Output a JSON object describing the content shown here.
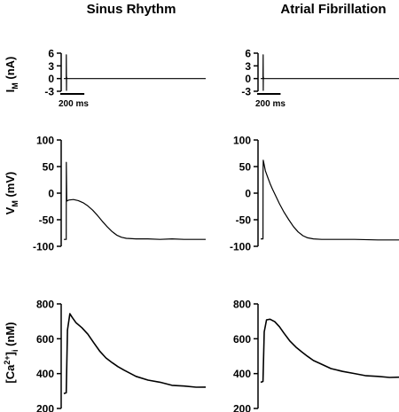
{
  "columns": [
    "Sinus Rhythm",
    "Atrial Fibrillation"
  ],
  "ylabels": {
    "current": {
      "main": "I",
      "sub": "M",
      "unit": " (nA)"
    },
    "voltage": {
      "main": "V",
      "sub": "M",
      "unit": " (mV)"
    },
    "calcium": {
      "pre": "[Ca",
      "sup": "2+",
      "post": "]",
      "sub": "i",
      "unit": " (nM)"
    }
  },
  "scale_bar": {
    "label": "200 ms",
    "duration_ms": 200
  },
  "chart_data": [
    {
      "type": "line",
      "title": "Sinus Rhythm",
      "ylabel": "IM (nA)",
      "yticks": [
        6,
        3,
        0,
        -3
      ],
      "ylim": [
        -3,
        6
      ],
      "xlim": [
        0,
        1180
      ],
      "series": [
        {
          "x": [
            0,
            20,
            21,
            22,
            23,
            24,
            1180
          ],
          "y": [
            0,
            0,
            5.6,
            -2.8,
            0.4,
            0,
            0
          ]
        }
      ]
    },
    {
      "type": "line",
      "title": "Atrial Fibrillation",
      "ylabel": "IM (nA)",
      "yticks": [
        6,
        3,
        0,
        -3
      ],
      "ylim": [
        -3,
        6
      ],
      "xlim": [
        0,
        1180
      ],
      "series": [
        {
          "x": [
            0,
            20,
            21,
            22,
            23,
            24,
            1180
          ],
          "y": [
            0,
            0,
            5.6,
            -2.8,
            0.4,
            0,
            0
          ]
        }
      ]
    },
    {
      "type": "line",
      "title": "Sinus Rhythm",
      "ylabel": "VM (mV)",
      "yticks": [
        100,
        50,
        0,
        -50,
        -100
      ],
      "ylim": [
        -100,
        100
      ],
      "xlim": [
        0,
        1180
      ],
      "series": [
        {
          "x": [
            0,
            20,
            20.5,
            21,
            24,
            40,
            80,
            120,
            160,
            200,
            240,
            280,
            320,
            360,
            400,
            440,
            480,
            520,
            600,
            700,
            800,
            900,
            1000,
            1100,
            1180
          ],
          "y": [
            -87,
            -87,
            30,
            58,
            -15,
            -13,
            -12,
            -14,
            -18,
            -24,
            -32,
            -42,
            -53,
            -63,
            -72,
            -79,
            -83,
            -85,
            -86,
            -86,
            -87,
            -86,
            -87,
            -87,
            -87
          ]
        }
      ]
    },
    {
      "type": "line",
      "title": "Atrial Fibrillation",
      "ylabel": "VM (mV)",
      "yticks": [
        100,
        50,
        0,
        -50,
        -100
      ],
      "ylim": [
        -100,
        100
      ],
      "xlim": [
        0,
        1180
      ],
      "series": [
        {
          "x": [
            0,
            20,
            20.5,
            22,
            40,
            60,
            80,
            100,
            130,
            160,
            200,
            240,
            280,
            320,
            360,
            400,
            450,
            520,
            600,
            800,
            1000,
            1180
          ],
          "y": [
            -86,
            -86,
            40,
            62,
            42,
            30,
            18,
            8,
            -6,
            -20,
            -36,
            -50,
            -63,
            -73,
            -80,
            -84,
            -86,
            -87,
            -87,
            -87,
            -88,
            -88
          ]
        }
      ]
    },
    {
      "type": "line",
      "title": "Sinus Rhythm",
      "ylabel": "[Ca2+]i (nM)",
      "yticks": [
        800,
        600,
        400,
        200
      ],
      "ylim": [
        200,
        800
      ],
      "xlim": [
        0,
        1180
      ],
      "series": [
        {
          "x": [
            0,
            20,
            30,
            50,
            70,
            100,
            150,
            200,
            250,
            300,
            350,
            400,
            450,
            500,
            600,
            700,
            800,
            900,
            1000,
            1100,
            1180
          ],
          "y": [
            285,
            290,
            650,
            740,
            720,
            690,
            660,
            625,
            580,
            530,
            490,
            465,
            445,
            420,
            385,
            360,
            345,
            330,
            325,
            320,
            318
          ]
        }
      ]
    },
    {
      "type": "line",
      "title": "Atrial Fibrillation",
      "ylabel": "[Ca2+]i (nM)",
      "yticks": [
        800,
        600,
        400,
        200
      ],
      "ylim": [
        200,
        800
      ],
      "xlim": [
        0,
        1180
      ],
      "series": [
        {
          "x": [
            0,
            20,
            30,
            50,
            80,
            120,
            160,
            200,
            250,
            300,
            350,
            400,
            450,
            500,
            600,
            700,
            800,
            900,
            1000,
            1100,
            1180
          ],
          "y": [
            350,
            355,
            640,
            705,
            710,
            695,
            665,
            630,
            590,
            555,
            525,
            500,
            480,
            460,
            430,
            410,
            395,
            385,
            380,
            376,
            375
          ]
        }
      ]
    }
  ]
}
